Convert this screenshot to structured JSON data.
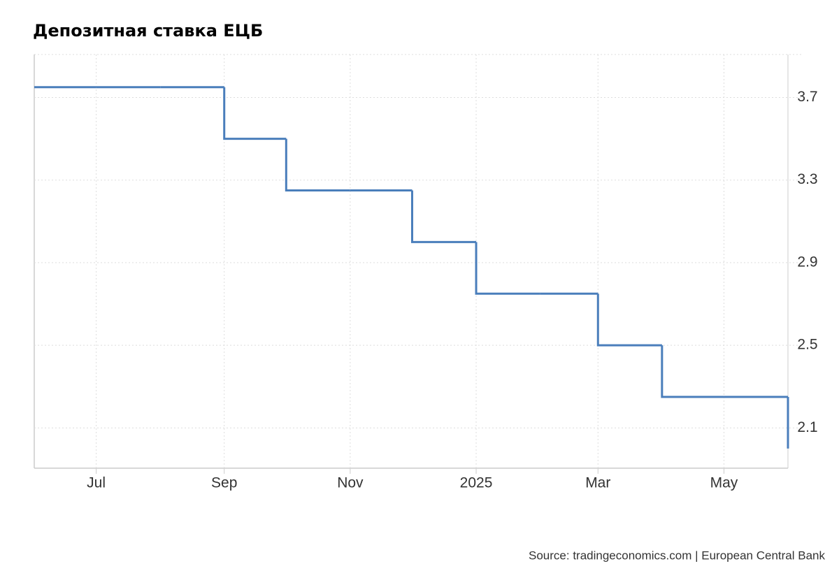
{
  "chart_data": {
    "type": "line",
    "step": "post",
    "title": "Депозитная ставка ЕЦБ",
    "source": "Source: tradingeconomics.com | European Central Bank",
    "x": [
      "2024-06",
      "2024-07",
      "2024-08",
      "2024-09",
      "2024-10",
      "2024-11",
      "2024-12",
      "2025-01",
      "2025-02",
      "2025-03",
      "2025-04",
      "2025-05",
      "2025-06"
    ],
    "series": [
      {
        "name": "Депозитная ставка ЕЦБ",
        "color": "#4a7ebb",
        "values": [
          3.75,
          3.75,
          3.75,
          3.5,
          3.25,
          3.25,
          3.0,
          2.75,
          2.75,
          2.5,
          2.25,
          2.25,
          2.0
        ]
      }
    ],
    "xlim": [
      "2024-06",
      "2025-06"
    ],
    "xticks": [
      {
        "value": "2024-07",
        "label": "Jul"
      },
      {
        "value": "2024-09",
        "label": "Sep"
      },
      {
        "value": "2024-11",
        "label": "Nov"
      },
      {
        "value": "2025-01",
        "label": "2025"
      },
      {
        "value": "2025-03",
        "label": "Mar"
      },
      {
        "value": "2025-05",
        "label": "May"
      }
    ],
    "ylim": [
      1.905,
      3.908
    ],
    "yticks": [
      2.1,
      2.5,
      2.9,
      3.3,
      3.7
    ],
    "grid": true,
    "legend": false
  }
}
